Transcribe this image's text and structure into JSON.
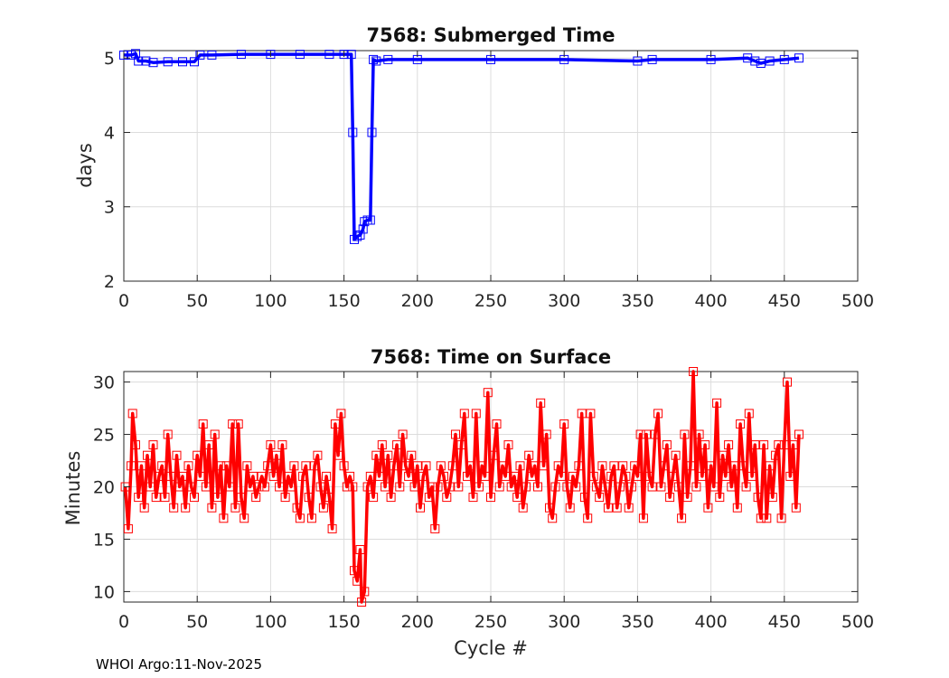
{
  "footer": "WHOI Argo:11-Nov-2025",
  "chart_data": [
    {
      "type": "line",
      "title": "7568: Submerged Time",
      "xlabel": "",
      "ylabel": "days",
      "xlim": [
        0,
        500
      ],
      "ylim": [
        2,
        5.1
      ],
      "xticks": [
        0,
        50,
        100,
        150,
        200,
        250,
        300,
        350,
        400,
        450,
        500
      ],
      "yticks": [
        2,
        3,
        4,
        5
      ],
      "grid": true,
      "color": "#0000ff",
      "marker": "square",
      "series": [
        {
          "points": [
            [
              0,
              5.04
            ],
            [
              5,
              5.04
            ],
            [
              8,
              5.06
            ],
            [
              10,
              4.96
            ],
            [
              15,
              4.96
            ],
            [
              20,
              4.94
            ],
            [
              30,
              4.95
            ],
            [
              40,
              4.95
            ],
            [
              48,
              4.95
            ],
            [
              52,
              5.04
            ],
            [
              60,
              5.04
            ],
            [
              80,
              5.05
            ],
            [
              100,
              5.05
            ],
            [
              120,
              5.05
            ],
            [
              140,
              5.05
            ],
            [
              150,
              5.05
            ],
            [
              155,
              5.05
            ],
            [
              156,
              4.0
            ],
            [
              157,
              2.56
            ],
            [
              159,
              2.6
            ],
            [
              161,
              2.62
            ],
            [
              163,
              2.7
            ],
            [
              164,
              2.8
            ],
            [
              166,
              2.82
            ],
            [
              168,
              2.82
            ],
            [
              169,
              4.0
            ],
            [
              170,
              4.98
            ],
            [
              172,
              4.96
            ],
            [
              180,
              4.98
            ],
            [
              200,
              4.98
            ],
            [
              250,
              4.98
            ],
            [
              300,
              4.98
            ],
            [
              350,
              4.96
            ],
            [
              360,
              4.98
            ],
            [
              400,
              4.98
            ],
            [
              425,
              5.0
            ],
            [
              430,
              4.96
            ],
            [
              434,
              4.93
            ],
            [
              440,
              4.96
            ],
            [
              450,
              4.98
            ],
            [
              460,
              5.0
            ]
          ]
        }
      ]
    },
    {
      "type": "line",
      "title": "7568: Time on Surface",
      "xlabel": "Cycle #",
      "ylabel": "Minutes",
      "xlim": [
        0,
        500
      ],
      "ylim": [
        9,
        31
      ],
      "xticks": [
        0,
        50,
        100,
        150,
        200,
        250,
        300,
        350,
        400,
        450,
        500
      ],
      "yticks": [
        10,
        15,
        20,
        25,
        30
      ],
      "grid": true,
      "color": "#ff0000",
      "marker": "square",
      "series": [
        {
          "points": [
            [
              1,
              20
            ],
            [
              3,
              16
            ],
            [
              5,
              22
            ],
            [
              6,
              27
            ],
            [
              8,
              24
            ],
            [
              10,
              19
            ],
            [
              12,
              22
            ],
            [
              14,
              18
            ],
            [
              16,
              23
            ],
            [
              18,
              20
            ],
            [
              20,
              24
            ],
            [
              22,
              19
            ],
            [
              24,
              21
            ],
            [
              26,
              22
            ],
            [
              28,
              19
            ],
            [
              30,
              25
            ],
            [
              32,
              21
            ],
            [
              34,
              18
            ],
            [
              36,
              23
            ],
            [
              38,
              20
            ],
            [
              40,
              21
            ],
            [
              42,
              18
            ],
            [
              44,
              22
            ],
            [
              46,
              20
            ],
            [
              48,
              19
            ],
            [
              50,
              23
            ],
            [
              52,
              21
            ],
            [
              54,
              26
            ],
            [
              56,
              20
            ],
            [
              58,
              24
            ],
            [
              60,
              18
            ],
            [
              62,
              25
            ],
            [
              64,
              19
            ],
            [
              66,
              22
            ],
            [
              68,
              17
            ],
            [
              70,
              22
            ],
            [
              72,
              20
            ],
            [
              74,
              26
            ],
            [
              76,
              18
            ],
            [
              78,
              26
            ],
            [
              80,
              19
            ],
            [
              82,
              17
            ],
            [
              84,
              22
            ],
            [
              86,
              20
            ],
            [
              88,
              21
            ],
            [
              90,
              19
            ],
            [
              92,
              20
            ],
            [
              94,
              21
            ],
            [
              96,
              20
            ],
            [
              98,
              22
            ],
            [
              100,
              24
            ],
            [
              102,
              21
            ],
            [
              104,
              23
            ],
            [
              106,
              20
            ],
            [
              108,
              24
            ],
            [
              110,
              19
            ],
            [
              112,
              21
            ],
            [
              114,
              20
            ],
            [
              116,
              22
            ],
            [
              118,
              18
            ],
            [
              120,
              17
            ],
            [
              122,
              21
            ],
            [
              124,
              22
            ],
            [
              126,
              19
            ],
            [
              128,
              17
            ],
            [
              130,
              22
            ],
            [
              132,
              23
            ],
            [
              134,
              20
            ],
            [
              136,
              18
            ],
            [
              138,
              21
            ],
            [
              140,
              19
            ],
            [
              142,
              16
            ],
            [
              144,
              26
            ],
            [
              146,
              23
            ],
            [
              148,
              27
            ],
            [
              150,
              22
            ],
            [
              152,
              20
            ],
            [
              154,
              21
            ],
            [
              156,
              20
            ],
            [
              157,
              12
            ],
            [
              159,
              11
            ],
            [
              161,
              14
            ],
            [
              162,
              9
            ],
            [
              164,
              10
            ],
            [
              166,
              20
            ],
            [
              168,
              21
            ],
            [
              170,
              19
            ],
            [
              172,
              23
            ],
            [
              174,
              21
            ],
            [
              176,
              24
            ],
            [
              178,
              20
            ],
            [
              180,
              23
            ],
            [
              182,
              19
            ],
            [
              184,
              22
            ],
            [
              186,
              24
            ],
            [
              188,
              20
            ],
            [
              190,
              25
            ],
            [
              192,
              22
            ],
            [
              194,
              21
            ],
            [
              196,
              23
            ],
            [
              198,
              20
            ],
            [
              200,
              22
            ],
            [
              202,
              18
            ],
            [
              204,
              21
            ],
            [
              206,
              22
            ],
            [
              208,
              19
            ],
            [
              210,
              20
            ],
            [
              212,
              16
            ],
            [
              214,
              20
            ],
            [
              216,
              22
            ],
            [
              218,
              21
            ],
            [
              220,
              19
            ],
            [
              222,
              20
            ],
            [
              224,
              22
            ],
            [
              226,
              25
            ],
            [
              228,
              20
            ],
            [
              230,
              24
            ],
            [
              232,
              27
            ],
            [
              234,
              21
            ],
            [
              236,
              22
            ],
            [
              238,
              19
            ],
            [
              240,
              27
            ],
            [
              242,
              20
            ],
            [
              244,
              22
            ],
            [
              246,
              21
            ],
            [
              248,
              29
            ],
            [
              250,
              19
            ],
            [
              252,
              23
            ],
            [
              254,
              26
            ],
            [
              256,
              20
            ],
            [
              258,
              22
            ],
            [
              260,
              21
            ],
            [
              262,
              24
            ],
            [
              264,
              20
            ],
            [
              266,
              21
            ],
            [
              268,
              19
            ],
            [
              270,
              22
            ],
            [
              272,
              18
            ],
            [
              274,
              20
            ],
            [
              276,
              23
            ],
            [
              278,
              21
            ],
            [
              280,
              22
            ],
            [
              282,
              20
            ],
            [
              284,
              28
            ],
            [
              286,
              22
            ],
            [
              288,
              25
            ],
            [
              290,
              18
            ],
            [
              292,
              17
            ],
            [
              294,
              20
            ],
            [
              296,
              22
            ],
            [
              298,
              21
            ],
            [
              300,
              26
            ],
            [
              302,
              20
            ],
            [
              304,
              18
            ],
            [
              306,
              21
            ],
            [
              308,
              20
            ],
            [
              310,
              22
            ],
            [
              312,
              27
            ],
            [
              314,
              19
            ],
            [
              316,
              17
            ],
            [
              318,
              27
            ],
            [
              320,
              21
            ],
            [
              322,
              20
            ],
            [
              324,
              19
            ],
            [
              326,
              22
            ],
            [
              328,
              20
            ],
            [
              330,
              18
            ],
            [
              332,
              21
            ],
            [
              334,
              22
            ],
            [
              336,
              18
            ],
            [
              338,
              20
            ],
            [
              340,
              22
            ],
            [
              342,
              21
            ],
            [
              344,
              18
            ],
            [
              346,
              20
            ],
            [
              348,
              22
            ],
            [
              350,
              21
            ],
            [
              352,
              25
            ],
            [
              354,
              17
            ],
            [
              356,
              25
            ],
            [
              358,
              21
            ],
            [
              360,
              20
            ],
            [
              362,
              25
            ],
            [
              364,
              27
            ],
            [
              366,
              20
            ],
            [
              368,
              22
            ],
            [
              370,
              24
            ],
            [
              372,
              19
            ],
            [
              374,
              21
            ],
            [
              376,
              23
            ],
            [
              378,
              20
            ],
            [
              380,
              17
            ],
            [
              382,
              25
            ],
            [
              384,
              19
            ],
            [
              386,
              22
            ],
            [
              388,
              31
            ],
            [
              390,
              20
            ],
            [
              392,
              25
            ],
            [
              394,
              21
            ],
            [
              396,
              24
            ],
            [
              398,
              18
            ],
            [
              400,
              22
            ],
            [
              402,
              20
            ],
            [
              404,
              28
            ],
            [
              406,
              19
            ],
            [
              408,
              23
            ],
            [
              410,
              21
            ],
            [
              412,
              24
            ],
            [
              414,
              20
            ],
            [
              416,
              22
            ],
            [
              418,
              18
            ],
            [
              420,
              26
            ],
            [
              422,
              22
            ],
            [
              424,
              20
            ],
            [
              426,
              27
            ],
            [
              428,
              21
            ],
            [
              430,
              24
            ],
            [
              432,
              19
            ],
            [
              434,
              17
            ],
            [
              436,
              24
            ],
            [
              438,
              17
            ],
            [
              440,
              22
            ],
            [
              442,
              19
            ],
            [
              444,
              23
            ],
            [
              446,
              24
            ],
            [
              448,
              17
            ],
            [
              450,
              24
            ],
            [
              452,
              30
            ],
            [
              454,
              21
            ],
            [
              456,
              24
            ],
            [
              458,
              18
            ],
            [
              460,
              25
            ]
          ]
        }
      ]
    }
  ]
}
